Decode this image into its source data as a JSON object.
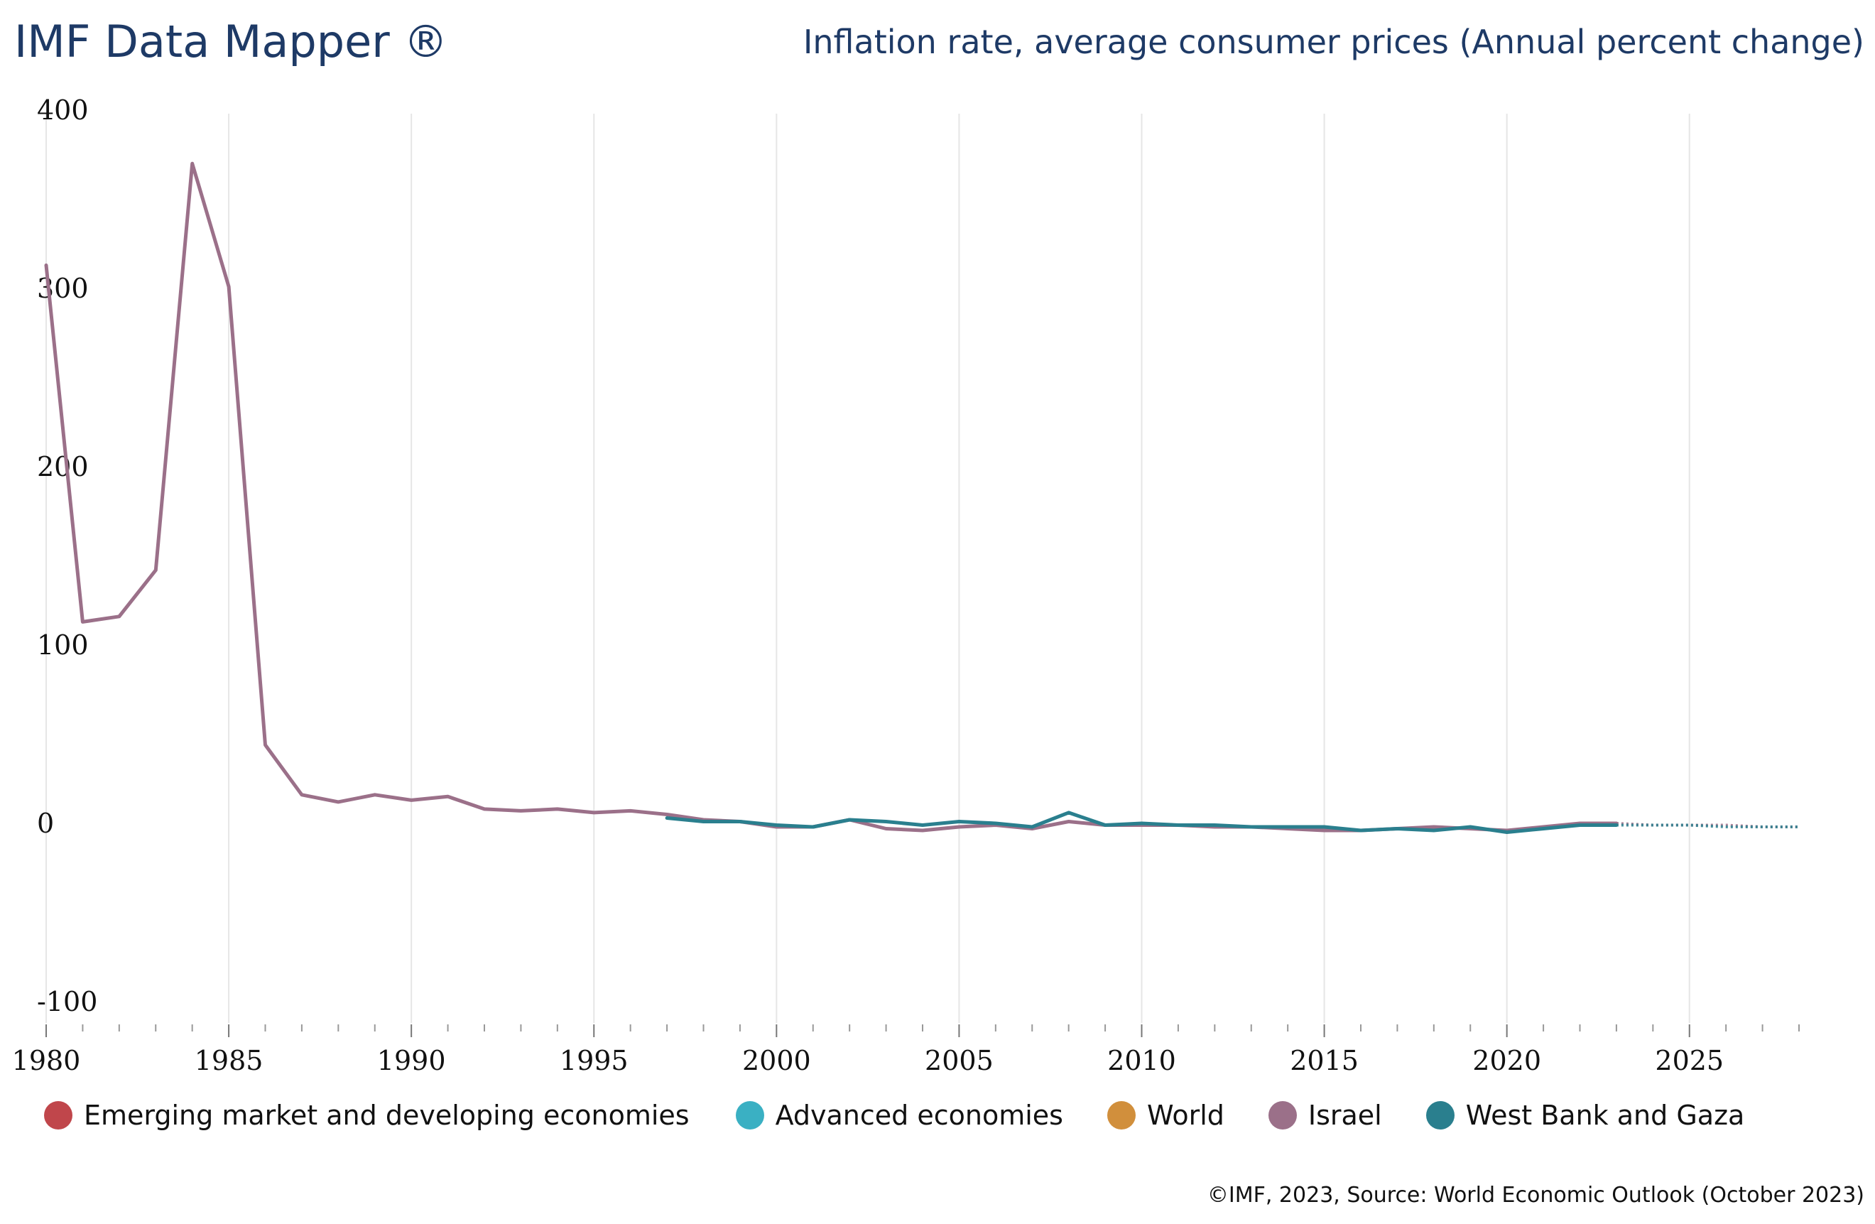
{
  "header": {
    "brand": "IMF Data Mapper ®",
    "title": "Inflation rate, average consumer prices (Annual percent change)"
  },
  "footer": {
    "source": "©IMF, 2023, Source: World Economic Outlook (October 2023)"
  },
  "chart_data": {
    "type": "line",
    "title": "Inflation rate, average consumer prices (Annual percent change)",
    "xlabel": "",
    "ylabel": "",
    "xlim": [
      1980,
      2028
    ],
    "ylim": [
      -100,
      400
    ],
    "x_ticks": [
      1980,
      1985,
      1990,
      1995,
      2000,
      2005,
      2010,
      2015,
      2020,
      2025
    ],
    "x_tick_labels": [
      "1980",
      "1985",
      "1990",
      "1995",
      "2000",
      "2005",
      "2010",
      "2015",
      "2020",
      "2025"
    ],
    "y_ticks": [
      -100,
      0,
      100,
      200,
      300,
      400
    ],
    "y_tick_labels": [
      "-100",
      "0",
      "100",
      "200",
      "300",
      "400"
    ],
    "grid": "vertical",
    "legend_position": "bottom",
    "series": [
      {
        "name": "Emerging market and developing economies",
        "color": "#c0464b",
        "x": [],
        "values": []
      },
      {
        "name": "Advanced economies",
        "color": "#3ab0c3",
        "x": [],
        "values": []
      },
      {
        "name": "World",
        "color": "#d18f3c",
        "x": [],
        "values": []
      },
      {
        "name": "Israel",
        "color": "#9b7089",
        "x": [
          1980,
          1981,
          1982,
          1983,
          1984,
          1985,
          1986,
          1987,
          1988,
          1989,
          1990,
          1991,
          1992,
          1993,
          1994,
          1995,
          1996,
          1997,
          1998,
          1999,
          2000,
          2001,
          2002,
          2003,
          2004,
          2005,
          2006,
          2007,
          2008,
          2009,
          2010,
          2011,
          2012,
          2013,
          2014,
          2015,
          2016,
          2017,
          2018,
          2019,
          2020,
          2021,
          2022,
          2023
        ],
        "values": [
          313,
          113,
          116,
          142,
          370,
          301,
          44,
          16,
          12,
          16,
          13,
          15,
          8,
          7,
          8,
          6,
          7,
          5,
          2,
          1,
          -2,
          -2,
          2,
          -3,
          -4,
          -2,
          -1,
          -3,
          1,
          -1,
          -1,
          -1,
          -2,
          -2,
          -3,
          -4,
          -4,
          -3,
          -2,
          -3,
          -4,
          -2,
          0,
          0
        ],
        "projection_x": [
          2023,
          2024,
          2025,
          2026,
          2027,
          2028
        ],
        "projection_values": [
          0,
          -1,
          -1,
          -1,
          -2,
          -2
        ]
      },
      {
        "name": "West Bank and Gaza",
        "color": "#2a7f8e",
        "x": [
          1997,
          1998,
          1999,
          2000,
          2001,
          2002,
          2003,
          2004,
          2005,
          2006,
          2007,
          2008,
          2009,
          2010,
          2011,
          2012,
          2013,
          2014,
          2015,
          2016,
          2017,
          2018,
          2019,
          2020,
          2021,
          2022,
          2023
        ],
        "values": [
          3,
          1,
          1,
          -1,
          -2,
          2,
          1,
          -1,
          1,
          0,
          -2,
          6,
          -1,
          0,
          -1,
          -1,
          -2,
          -2,
          -2,
          -4,
          -3,
          -4,
          -2,
          -5,
          -3,
          -1,
          -1
        ],
        "projection_x": [
          2023,
          2024,
          2025,
          2026,
          2027,
          2028
        ],
        "projection_values": [
          -1,
          -1,
          -1,
          -2,
          -2,
          -2
        ]
      }
    ]
  }
}
